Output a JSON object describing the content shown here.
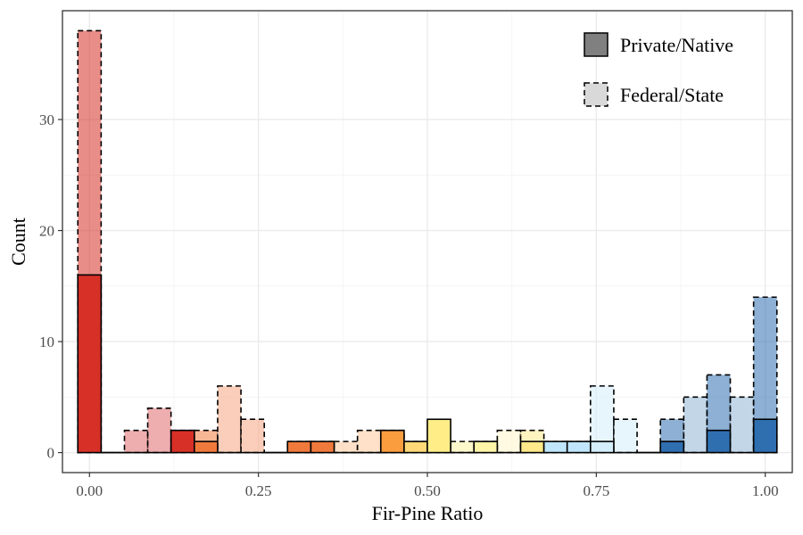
{
  "chart_data": {
    "type": "bar",
    "subtype": "overlaid-histogram",
    "title": "",
    "xlabel": "Fir-Pine Ratio",
    "ylabel": "Count",
    "xlim": [
      -0.04,
      1.04
    ],
    "ylim": [
      -1.8,
      39.8
    ],
    "x_ticks": [
      0,
      0.25,
      0.5,
      0.75,
      1
    ],
    "x_tick_labels": [
      "0.00",
      "0.25",
      "0.50",
      "0.75",
      "1.00"
    ],
    "y_ticks": [
      0,
      10,
      20,
      30
    ],
    "y_tick_labels": [
      "0",
      "10",
      "20",
      "30"
    ],
    "bin_width": 0.0345,
    "bin_centers": [
      0.0,
      0.0345,
      0.069,
      0.1034,
      0.1379,
      0.1724,
      0.2069,
      0.2414,
      0.2759,
      0.3103,
      0.3448,
      0.3793,
      0.4138,
      0.4483,
      0.4828,
      0.5172,
      0.5517,
      0.5862,
      0.6207,
      0.6552,
      0.6897,
      0.7241,
      0.7586,
      0.7931,
      0.8276,
      0.8621,
      0.8966,
      0.931,
      0.9655,
      1.0
    ],
    "bin_colors": [
      "#d73027",
      "#d73027",
      "#e0696b",
      "#e0696b",
      "#d73027",
      "#f07a3c",
      "#f5a582",
      "#f5a582",
      "#f07a3c",
      "#f07a3c",
      "#f07a3c",
      "#fdc89a",
      "#fdc89a",
      "#f99d3f",
      "#ffd978",
      "#ffee88",
      "#fff3a0",
      "#fff6a8",
      "#fff6c8",
      "#ffe98a",
      "#bfe6fb",
      "#bfe6fb",
      "#d4eefc",
      "#d4eefc",
      "#2f6fb0",
      "#2f6fb0",
      "#8fb4d6",
      "#2f6fb0",
      "#8fb4d6",
      "#2f6fb0"
    ],
    "grid": true,
    "legend_position": "top-right",
    "series": [
      {
        "name": "Private/Native",
        "linestyle": "solid",
        "values": [
          16,
          0,
          0,
          0,
          2,
          1,
          0,
          0,
          0,
          1,
          1,
          0,
          0,
          2,
          1,
          3,
          0,
          1,
          0,
          1,
          1,
          1,
          1,
          0,
          0,
          1,
          0,
          2,
          0,
          3
        ]
      },
      {
        "name": "Federal/State",
        "linestyle": "dashed",
        "values": [
          38,
          0,
          2,
          4,
          2,
          2,
          6,
          3,
          0,
          1,
          1,
          1,
          2,
          2,
          1,
          1,
          1,
          1,
          2,
          2,
          1,
          1,
          6,
          3,
          0,
          3,
          5,
          7,
          5,
          14
        ]
      }
    ]
  }
}
